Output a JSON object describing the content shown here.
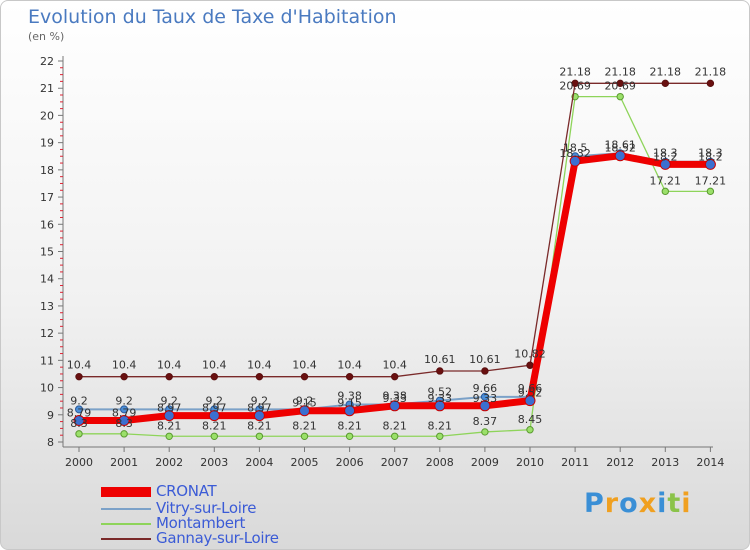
{
  "header": {
    "title": "Evolution du Taux de Taxe d'Habitation",
    "subtitle": "(en %)"
  },
  "chart_data": {
    "type": "line",
    "title": "Evolution du Taux de Taxe d'Habitation",
    "ylabel": "(en %)",
    "xlabel": "",
    "x": [
      "2000",
      "2001",
      "2002",
      "2003",
      "2004",
      "2005",
      "2006",
      "2007",
      "2008",
      "2009",
      "2010",
      "2011",
      "2012",
      "2013",
      "2014"
    ],
    "ylim": [
      8,
      22
    ],
    "yticks": [
      8,
      9,
      10,
      11,
      12,
      13,
      14,
      15,
      16,
      17,
      18,
      19,
      20,
      21,
      22
    ],
    "grid": false,
    "legend_position": "bottom-left",
    "series": [
      {
        "name": "CRONAT",
        "color": "#ee0000",
        "values": [
          8.79,
          8.79,
          8.97,
          8.97,
          8.97,
          9.15,
          9.15,
          9.33,
          9.33,
          9.33,
          9.52,
          18.32,
          18.52,
          18.2,
          18.2
        ],
        "labels": [
          "8.79",
          "8.79",
          "8.97",
          "8.97",
          "8.97",
          "9.15",
          "9.15",
          "9.33",
          "9.33",
          "9.33",
          "9.52",
          "18.32",
          "18.52",
          "18.2",
          "18.2"
        ]
      },
      {
        "name": "Vitry-sur-Loire",
        "color": "#7ba1c8",
        "values": [
          9.2,
          9.2,
          9.2,
          9.2,
          9.2,
          9.2,
          9.38,
          9.38,
          9.52,
          9.66,
          9.66,
          18.5,
          18.61,
          18.3,
          18.3
        ],
        "labels": [
          "9.2",
          "9.2",
          "9.2",
          "9.2",
          "9.2",
          "9.2",
          "9.38",
          "9.38",
          "9.52",
          "9.66",
          "9.66",
          "18.5",
          "18.61",
          "18.3",
          "18.3"
        ]
      },
      {
        "name": "Montambert",
        "color": "#8ed45a",
        "values": [
          8.3,
          8.3,
          8.21,
          8.21,
          8.21,
          8.21,
          8.21,
          8.21,
          8.21,
          8.37,
          8.45,
          20.69,
          20.69,
          17.21,
          17.21
        ],
        "labels": [
          "8.3",
          "8.3",
          "8.21",
          "8.21",
          "8.21",
          "8.21",
          "8.21",
          "8.21",
          "8.21",
          "8.37",
          "8.45",
          "20.69",
          "20.69",
          "17.21",
          "17.21"
        ]
      },
      {
        "name": "Gannay-sur-Loire",
        "color": "#7a2a2a",
        "values": [
          10.4,
          10.4,
          10.4,
          10.4,
          10.4,
          10.4,
          10.4,
          10.4,
          10.61,
          10.61,
          10.82,
          21.18,
          21.18,
          21.18,
          21.18
        ],
        "labels": [
          "10.4",
          "10.4",
          "10.4",
          "10.4",
          "10.4",
          "10.4",
          "10.4",
          "10.4",
          "10.61",
          "10.61",
          "10.82",
          "21.18",
          "21.18",
          "21.18",
          "21.18"
        ]
      }
    ]
  },
  "logo": {
    "text": "Proxiti",
    "colors": [
      "#3a8fd6",
      "#f0a020",
      "#3a8fd6",
      "#f0a020",
      "#3a8fd6",
      "#8bc34a",
      "#f0a020"
    ]
  }
}
